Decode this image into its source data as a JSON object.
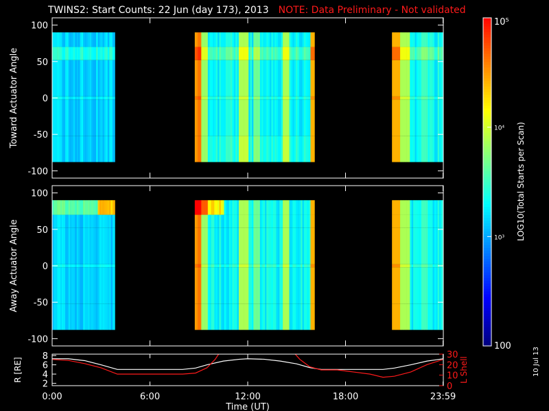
{
  "title": {
    "main": "TWINS2: Start Counts: 22 Jun (day 173), 2013",
    "note": "NOTE: Data Preliminary - Not validated"
  },
  "date_stamp": "10 Jul 13",
  "colors": {
    "background": "#000000",
    "foreground": "#ffffff",
    "note": "#ff1a1a",
    "l_shell": "#ff1a1a",
    "colormap": [
      "#000080",
      "#0000ff",
      "#0080ff",
      "#00ffff",
      "#80ff80",
      "#ffff00",
      "#ff8000",
      "#ff0000"
    ]
  },
  "chart_data": [
    {
      "type": "heatmap",
      "name": "toward",
      "ylabel": "Toward Actuator Angle",
      "ylim": [
        -110,
        110
      ],
      "yticks": [
        100,
        50,
        0,
        -50,
        -100
      ],
      "ytick_labels": [
        "100",
        "50",
        "0",
        "-50",
        "-100"
      ],
      "xlim": [
        0,
        24
      ],
      "angle_range": [
        -88,
        90
      ],
      "data_intervals_hours": [
        [
          0.0,
          3.85
        ],
        [
          8.75,
          16.1
        ],
        [
          20.85,
          23.98
        ]
      ]
    },
    {
      "type": "heatmap",
      "name": "away",
      "ylabel": "Away Actuator Angle",
      "ylim": [
        -110,
        110
      ],
      "yticks": [
        100,
        50,
        0,
        -50,
        -100
      ],
      "ytick_labels": [
        "100",
        "50",
        "0",
        "-50",
        "-100"
      ],
      "xlim": [
        0,
        24
      ],
      "angle_range": [
        -88,
        90
      ],
      "data_intervals_hours": [
        [
          0.0,
          3.85
        ],
        [
          8.75,
          16.1
        ],
        [
          20.85,
          23.98
        ]
      ]
    },
    {
      "type": "line",
      "name": "orbit",
      "ylabel_left": "R [RE]",
      "ylabel_right": "L Shell",
      "xlabel": "Time (UT)",
      "xlim": [
        0,
        24
      ],
      "xticks": [
        0,
        6,
        12,
        18,
        23.983
      ],
      "xtick_labels": [
        "0:00",
        "6:00",
        "12:00",
        "18:00",
        "23:59"
      ],
      "ylim_left": [
        1.5,
        8.3
      ],
      "yticks_left": [
        2,
        4,
        6,
        8
      ],
      "ytick_labels_left": [
        "2",
        "4",
        "6",
        "8"
      ],
      "ylim_right": [
        0,
        30
      ],
      "yticks_right": [
        0,
        10,
        20,
        30
      ],
      "ytick_labels_right": [
        "0",
        "10",
        "20",
        "30"
      ],
      "series": [
        {
          "axis": "left",
          "color": "#ffffff",
          "x": [
            0,
            1,
            2,
            3,
            4,
            5,
            6,
            7,
            8,
            8.8,
            9.5,
            10.5,
            11.5,
            12,
            13,
            14,
            15,
            15.8,
            16.5,
            17.5,
            18.5,
            19.5,
            20.3,
            21,
            22,
            23,
            24
          ],
          "y": [
            7.3,
            7.3,
            6.9,
            6.0,
            5.0,
            5.0,
            5.0,
            5.0,
            5.0,
            5.3,
            6.0,
            6.8,
            7.2,
            7.3,
            7.2,
            6.8,
            6.2,
            5.4,
            5.0,
            5.0,
            5.0,
            5.0,
            5.0,
            5.3,
            6.0,
            6.8,
            7.3
          ]
        },
        {
          "axis": "right",
          "color": "#ff1a1a",
          "x": [
            0,
            1,
            2,
            3,
            4,
            5,
            6,
            7,
            8,
            8.8,
            9.5,
            10.0,
            10.3,
            14.8,
            15.2,
            15.8,
            16.5,
            17.5,
            18.5,
            19.5,
            20.3,
            21,
            22,
            23,
            24
          ],
          "y": [
            25,
            24,
            21,
            17,
            11,
            11,
            11,
            11,
            11,
            12,
            17,
            25,
            32,
            32,
            25,
            18,
            15,
            15,
            13,
            11,
            8,
            9,
            13,
            20,
            25
          ]
        }
      ]
    }
  ],
  "colorbar": {
    "label": "LOG10(Total Starts per Scan)",
    "min": 100,
    "max": 100000,
    "scale": "log",
    "ticks": [
      100,
      1000,
      10000,
      100000
    ],
    "tick_labels": [
      "100",
      "10³",
      "10⁴",
      "10⁵"
    ]
  }
}
